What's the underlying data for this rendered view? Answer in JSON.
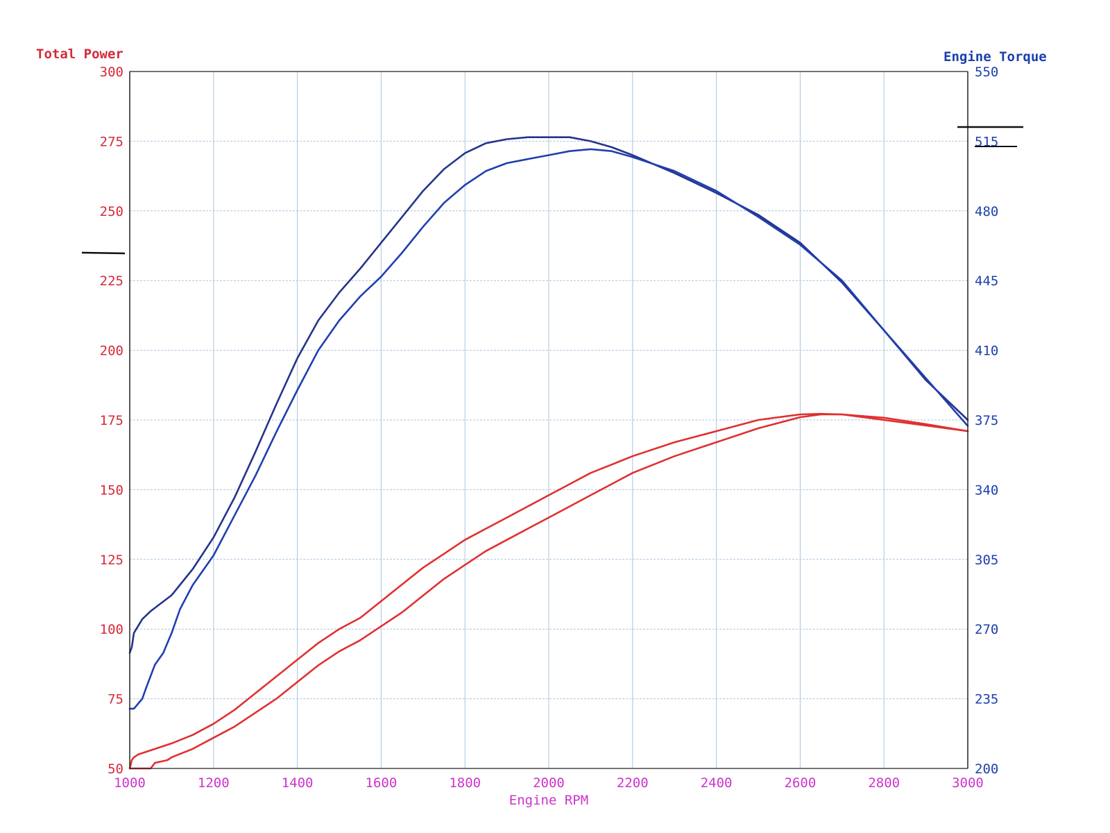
{
  "chart_data": {
    "type": "line",
    "title": "",
    "xlabel": "Engine RPM",
    "ylabel_left": "Total Power",
    "ylabel_right": "Engine Torque",
    "xlim": [
      1000,
      3000
    ],
    "ylim_left": [
      50,
      300
    ],
    "ylim_right": [
      200,
      550
    ],
    "x_ticks": [
      "1000",
      "1200",
      "1400",
      "1600",
      "1800",
      "2000",
      "2200",
      "2400",
      "2600",
      "2800",
      "3000"
    ],
    "y_ticks_left": [
      "300",
      "275",
      "250",
      "225",
      "200",
      "175",
      "150",
      "125",
      "100",
      "75",
      "50"
    ],
    "y_ticks_right": [
      "550",
      "515",
      "480",
      "445",
      "410",
      "375",
      "340",
      "305",
      "270",
      "235",
      "200"
    ],
    "grid": true,
    "colors": {
      "power": "#e03030",
      "torque_dark": "#26338a",
      "torque_blue": "#1f3fb0",
      "left_axis": "#d42a3a",
      "right_axis": "#1c3fae",
      "x_axis": "#cc33cc",
      "grid": "#a9c4de"
    },
    "series": [
      {
        "axis": "right",
        "color": "#26338a",
        "x": [
          1000,
          1005,
          1010,
          1030,
          1050,
          1100,
          1150,
          1200,
          1250,
          1300,
          1350,
          1400,
          1450,
          1500,
          1550,
          1600,
          1650,
          1700,
          1750,
          1800,
          1850,
          1900,
          1950,
          2000,
          2050,
          2100,
          2150,
          2200,
          2300,
          2400,
          2500,
          2600,
          2700,
          2800,
          2900,
          3000
        ],
        "y": [
          258,
          261,
          268,
          275,
          279,
          287,
          300,
          316,
          336,
          359,
          383,
          406,
          425,
          439,
          451,
          464,
          477,
          490,
          501,
          509,
          514,
          516,
          517,
          517,
          517,
          515,
          512,
          508,
          499,
          489,
          478,
          464,
          444,
          420,
          395,
          375
        ]
      },
      {
        "axis": "right",
        "color": "#1f3fb0",
        "x": [
          1000,
          1010,
          1030,
          1040,
          1060,
          1080,
          1100,
          1120,
          1150,
          1200,
          1250,
          1300,
          1350,
          1400,
          1450,
          1500,
          1550,
          1600,
          1650,
          1700,
          1750,
          1800,
          1850,
          1900,
          1950,
          2000,
          2050,
          2100,
          2150,
          2200,
          2300,
          2400,
          2500,
          2600,
          2700,
          2800,
          2900,
          3000
        ],
        "y": [
          230,
          230,
          235,
          241,
          252,
          258,
          268,
          280,
          292,
          307,
          327,
          347,
          369,
          390,
          410,
          425,
          437,
          447,
          459,
          472,
          484,
          493,
          500,
          504,
          506,
          508,
          510,
          511,
          510,
          507,
          500,
          490,
          477,
          463,
          445,
          420,
          396,
          372
        ]
      },
      {
        "axis": "left",
        "color": "#e03030",
        "x": [
          1000,
          1005,
          1010,
          1020,
          1040,
          1060,
          1080,
          1100,
          1150,
          1200,
          1250,
          1300,
          1350,
          1400,
          1450,
          1500,
          1550,
          1600,
          1650,
          1700,
          1750,
          1800,
          1850,
          1900,
          1950,
          2000,
          2050,
          2100,
          2150,
          2200,
          2300,
          2400,
          2500,
          2600,
          2650,
          2700,
          2800,
          2900,
          3000
        ],
        "y": [
          50,
          53,
          54,
          55,
          56,
          57,
          58,
          59,
          62,
          66,
          71,
          77,
          83,
          89,
          95,
          100,
          104,
          110,
          116,
          122,
          127,
          132,
          136,
          140,
          144,
          148,
          152,
          156,
          159,
          162,
          167,
          171,
          175,
          177,
          177.2,
          177,
          175,
          173,
          171
        ]
      },
      {
        "axis": "left",
        "color": "#e03030",
        "x": [
          1000,
          1010,
          1040,
          1050,
          1060,
          1090,
          1100,
          1150,
          1200,
          1250,
          1300,
          1350,
          1400,
          1450,
          1500,
          1550,
          1600,
          1650,
          1700,
          1750,
          1800,
          1850,
          1900,
          1950,
          2000,
          2050,
          2100,
          2150,
          2200,
          2300,
          2400,
          2500,
          2600,
          2650,
          2700,
          2800,
          2900,
          3000
        ],
        "y": [
          50,
          50,
          50,
          50,
          52,
          53,
          54,
          57,
          61,
          65,
          70,
          75,
          81,
          87,
          92,
          96,
          101,
          106,
          112,
          118,
          123,
          128,
          132,
          136,
          140,
          144,
          148,
          152,
          156,
          162,
          167,
          172,
          176,
          177,
          177,
          175.8,
          173.5,
          171
        ]
      }
    ]
  }
}
